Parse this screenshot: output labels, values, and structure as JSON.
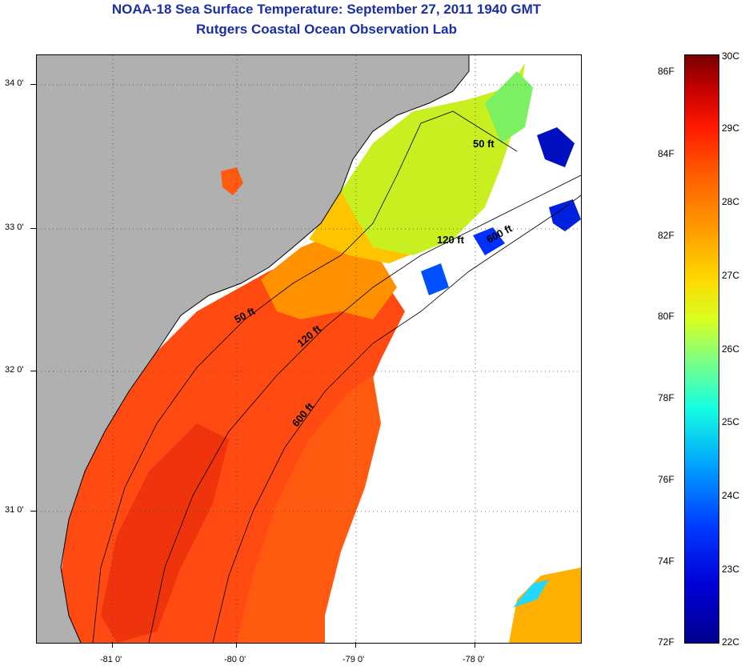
{
  "title": {
    "line1": "NOAA-18 Sea Surface Temperature:  September 27, 2011 1940 GMT",
    "line2": "Rutgers Coastal Ocean Observation Lab"
  },
  "map": {
    "latitude_labels": [
      "34 0'",
      "33 0'",
      "32 0'",
      "31 0'"
    ],
    "longitude_labels": [
      "-81 0'",
      "-80 0'",
      "-79 0'",
      "-78 0'"
    ],
    "contour_labels": [
      "50 ft",
      "120 ft",
      "600 ft",
      "50 ft",
      "120 ft",
      "600 ft"
    ],
    "colors": {
      "land": "#b0b0b0",
      "no_data": "#ffffff",
      "title": "#1a2fa5"
    }
  },
  "colorbar": {
    "fahrenheit_labels": [
      "86F",
      "84F",
      "82F",
      "80F",
      "78F",
      "76F",
      "74F",
      "72F"
    ],
    "celsius_labels": [
      "30C",
      "29C",
      "28C",
      "27C",
      "26C",
      "25C",
      "24C",
      "23C",
      "22C"
    ]
  }
}
